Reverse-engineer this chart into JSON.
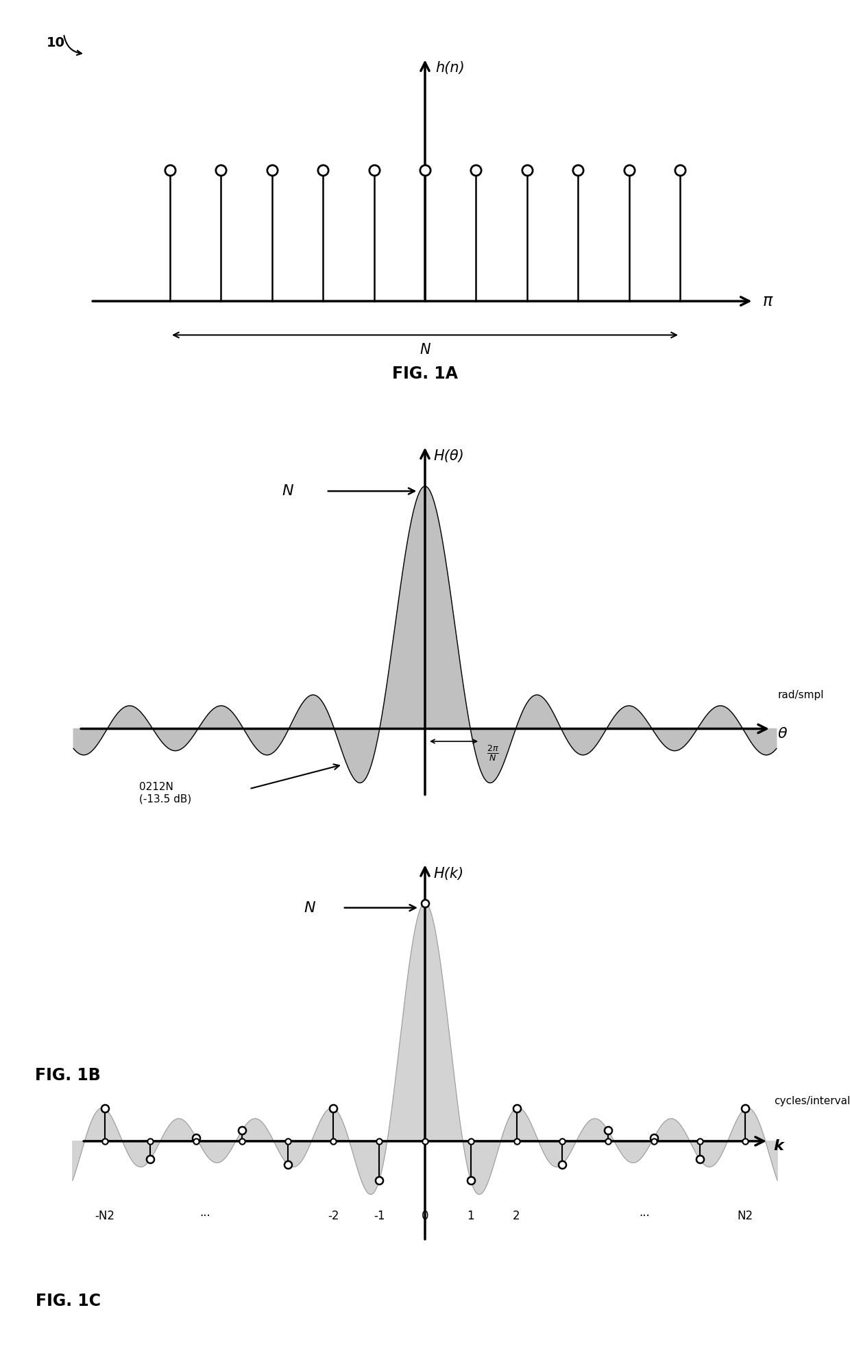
{
  "fig_width": 12.4,
  "fig_height": 19.64,
  "bg_color": "#ffffff",
  "stem_color": "#000000",
  "circle_color": "#ffffff",
  "circle_edge_color": "#000000",
  "fill_color": "#bbbbbb",
  "arrow_color": "#000000",
  "text_color": "#000000",
  "fig1a_n_stems": 11,
  "fig1a_title": "h(n)",
  "fig1a_xlabel": "π",
  "fig1a_caption": "FIG. 1A",
  "fig1b_title": "H(θ)",
  "fig1b_xlabel": "θ",
  "fig1b_xlabel2": "rad/smpl",
  "fig1b_caption": "FIG. 1B",
  "fig1b_annot1": "0212N",
  "fig1b_annot2": "(-13.5 dB)",
  "fig1c_title": "H(k)",
  "fig1c_xlabel": "k",
  "fig1c_xlabel2": "cycles/interval",
  "fig1c_caption": "FIG. 1C",
  "label_10": "10",
  "label_N": "N"
}
